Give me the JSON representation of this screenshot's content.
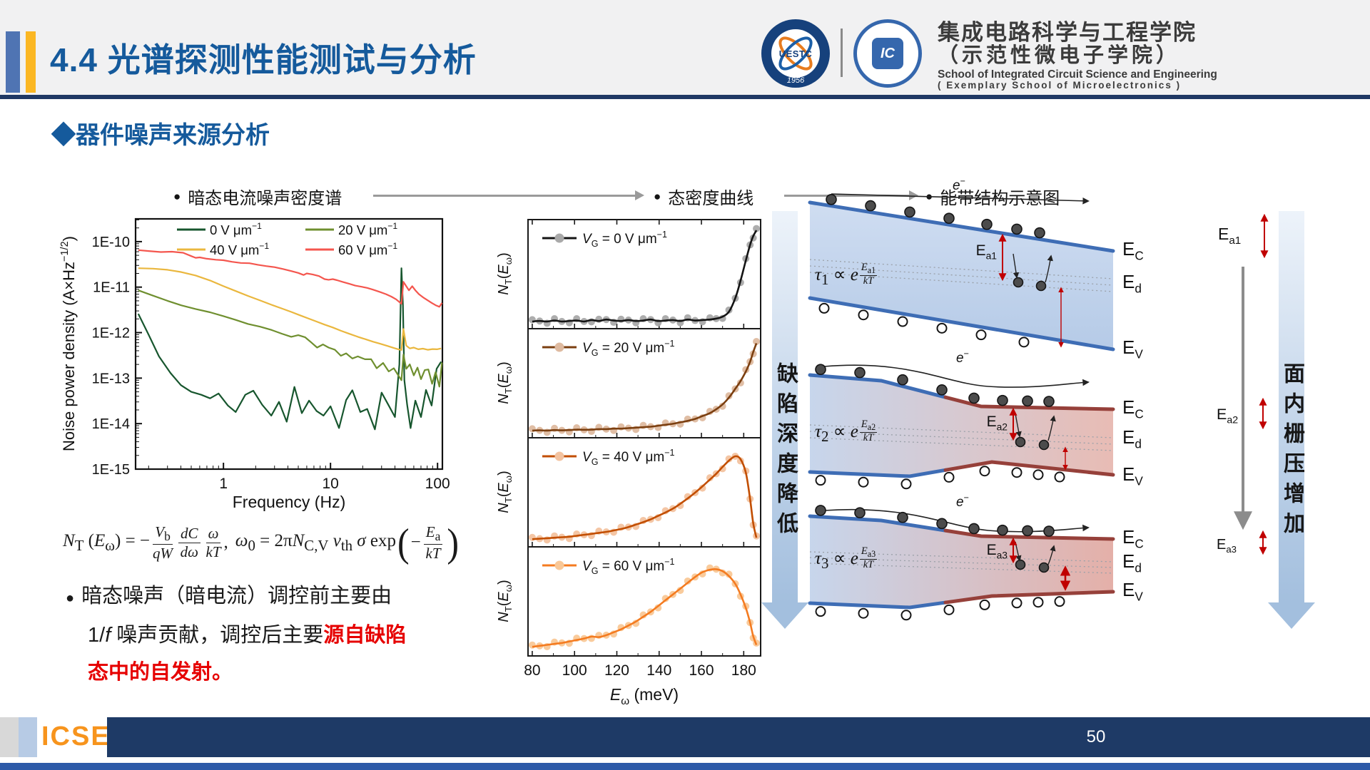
{
  "header": {
    "title": "4.4 光谱探测性能测试与分析",
    "uestc_label": "UESTC",
    "uestc_year": "1956",
    "icse_label": "IC",
    "school_cn1": "集成电路科学与工程学院",
    "school_cn2": "（示范性微电子学院）",
    "school_en1": "School of Integrated Circuit Science and Engineering",
    "school_en2": "( Exemplary School of Microelectronics )"
  },
  "section": {
    "marker": "◆",
    "heading": "器件噪声来源分析"
  },
  "flow": {
    "item1": "暗态电流噪声密度谱",
    "item2": "态密度曲线",
    "item3": "能带结构示意图",
    "dot": "●"
  },
  "formula": {
    "lhs": "*N*_{T} (*E*_{ω}) = −",
    "f1n": "*V*_{b}",
    "f1d": "*qW*",
    "f2n": "*dC*",
    "f2d": "*dω*",
    "f3n": "*ω*",
    "f3d": "*kT*",
    "comma": ",",
    "mid": "*ω*_{0} = 2π*N*_{C,V} *v*_{th} *σ* exp",
    "open": "(",
    "minus": "−",
    "f4n": "*E*_{a}",
    "f4d": "*kT*",
    "close": ")"
  },
  "conclusion": {
    "dot": "●",
    "l1": "暗态噪声（暗电流）调控前主要由",
    "l2a": "1/*f* 噪声贡献，调控后主要",
    "l2b": "源自缺陷",
    "l3": "态中的自发射。"
  },
  "chart_data": [
    {
      "id": "noise",
      "type": "line",
      "title": "暗态电流噪声密度谱",
      "xlabel": "Frequency (Hz)",
      "ylabel": "Noise power density (A×Hz^{−1/2})",
      "xscale": "log",
      "yscale": "log",
      "xlim": [
        0.151,
        111
      ],
      "ylim": [
        1e-15,
        3.16e-10
      ],
      "xticks": [
        1,
        10,
        100
      ],
      "yticks": [
        "1E-10",
        "1E-11",
        "1E-12",
        "1E-13",
        "1E-14",
        "1E-15"
      ],
      "legend_position": "top-inside",
      "grid": false,
      "series": [
        {
          "name": "0 V μm^{−1}",
          "color": "#17562e",
          "x": [
            0.16,
            0.2,
            0.25,
            0.32,
            0.4,
            0.5,
            0.62,
            0.75,
            0.9,
            1.1,
            1.3,
            1.6,
            1.9,
            2.3,
            2.8,
            3.3,
            3.9,
            4.6,
            5.4,
            6.3,
            7.4,
            8.6,
            10,
            12,
            14,
            16,
            19,
            22,
            26,
            30,
            35,
            40,
            44,
            46,
            47.5,
            49,
            52,
            56,
            62,
            70,
            78,
            88,
            98,
            108
          ],
          "y": [
            2.6e-12,
            9e-13,
            3e-13,
            1.3e-13,
            7e-14,
            5e-14,
            4.3e-14,
            3.6e-14,
            4.6e-14,
            2.5e-14,
            1.8e-14,
            4.3e-14,
            5.3e-14,
            2.6e-14,
            1.5e-14,
            3e-14,
            1.1e-14,
            6.4e-14,
            1.7e-14,
            3.2e-14,
            1.9e-14,
            1.5e-14,
            2.4e-14,
            8e-15,
            3.3e-14,
            5.4e-14,
            1.8e-14,
            2.1e-14,
            7.5e-15,
            4.8e-14,
            2.5e-14,
            1.4e-14,
            2e-13,
            2.6e-11,
            4e-12,
            9e-14,
            2.6e-14,
            8e-15,
            3.2e-14,
            1.4e-14,
            5.5e-14,
            2.5e-14,
            1.6e-13,
            2.3e-13
          ]
        },
        {
          "name": "20 V μm^{−1}",
          "color": "#6f8f2f",
          "x": [
            0.16,
            0.22,
            0.3,
            0.4,
            0.55,
            0.75,
            1,
            1.3,
            1.7,
            2.2,
            2.8,
            3.5,
            4.3,
            5,
            5.8,
            6.6,
            7.5,
            8.5,
            9.6,
            11,
            12.5,
            14,
            16,
            18,
            21,
            24,
            27,
            31,
            35,
            39,
            43,
            46,
            48,
            51,
            55,
            60,
            65,
            70,
            76,
            82,
            89,
            96,
            104,
            110
          ],
          "y": [
            8.5e-12,
            6.5e-12,
            5e-12,
            4e-12,
            3.3e-12,
            2.8e-12,
            2.3e-12,
            1.9e-12,
            1.55e-12,
            1.35e-12,
            1.15e-12,
            9.5e-13,
            8.1e-13,
            8.8e-13,
            7.9e-13,
            6.1e-13,
            4.7e-13,
            5.5e-13,
            4.7e-13,
            4.2e-13,
            3.1e-13,
            3.5e-13,
            2.7e-13,
            3e-13,
            2.6e-13,
            2.6e-13,
            1.65e-13,
            2.15e-13,
            1.4e-13,
            1.65e-13,
            1.15e-13,
            9e-14,
            3.3e-13,
            1.6e-13,
            2e-13,
            1.15e-13,
            1.7e-13,
            9.5e-14,
            1.5e-13,
            1.55e-13,
            7.5e-14,
            1.35e-13,
            6.5e-14,
            2.2e-13
          ]
        },
        {
          "name": "40 V μm^{−1}",
          "color": "#eab73e",
          "x": [
            0.16,
            0.22,
            0.3,
            0.4,
            0.55,
            0.75,
            1,
            1.3,
            1.7,
            2.2,
            2.8,
            3.5,
            4.3,
            5.2,
            6.2,
            7.4,
            8.8,
            10.5,
            12.5,
            15,
            18,
            21,
            25,
            29,
            34,
            39,
            43,
            46,
            48,
            51,
            55,
            60,
            66,
            73,
            81,
            90,
            99,
            108
          ],
          "y": [
            2.6e-11,
            2.55e-11,
            2.4e-11,
            2.15e-11,
            1.8e-11,
            1.4e-11,
            1.05e-11,
            8.2e-12,
            6.4e-12,
            5.1e-12,
            4.1e-12,
            3.4e-12,
            2.85e-12,
            2.4e-12,
            2.05e-12,
            1.75e-12,
            1.5e-12,
            1.3e-12,
            1.1e-12,
            9.4e-13,
            8.1e-13,
            7.2e-13,
            6.3e-13,
            5.7e-13,
            5.1e-13,
            4.6e-13,
            4.3e-13,
            4.15e-13,
            1.2e-12,
            5.2e-13,
            4.5e-13,
            4.7e-13,
            4.3e-13,
            4.45e-13,
            4.2e-13,
            4.35e-13,
            4.3e-13,
            4.5e-13
          ]
        },
        {
          "name": "60 V μm^{−1}",
          "color": "#f4564e",
          "x": [
            0.16,
            0.2,
            0.26,
            0.33,
            0.42,
            0.5,
            0.55,
            0.6,
            0.7,
            0.85,
            1,
            1.2,
            1.45,
            1.75,
            2.1,
            2.5,
            3,
            3.6,
            4.3,
            5,
            5.6,
            6,
            6.8,
            7.8,
            8.8,
            9.6,
            10.5,
            11.5,
            13,
            15,
            17,
            19.5,
            22,
            25,
            29,
            33,
            37,
            41,
            44,
            46,
            48,
            51,
            54,
            58,
            62,
            67,
            73,
            80,
            88,
            96,
            104,
            110
          ],
          "y": [
            6.5e-11,
            6.2e-11,
            5.9e-11,
            6e-11,
            5.7e-11,
            4.8e-11,
            4.4e-11,
            4.5e-11,
            4.2e-11,
            4e-11,
            3.9e-11,
            3.6e-11,
            3.4e-11,
            3.35e-11,
            3.1e-11,
            2.9e-11,
            2.75e-11,
            2.5e-11,
            2.25e-11,
            2.05e-11,
            1.85e-11,
            2e-11,
            1.9e-11,
            1.75e-11,
            1.5e-11,
            1.45e-11,
            1.5e-11,
            1.42e-11,
            1.3e-11,
            1.18e-11,
            1.08e-11,
            1.02e-11,
            9.6e-12,
            8.8e-12,
            7.8e-12,
            7e-12,
            6.2e-12,
            5.4e-12,
            4.7e-12,
            4.3e-12,
            1.3e-11,
            1.05e-11,
            8.5e-12,
            1.05e-11,
            8.5e-12,
            7e-12,
            6e-12,
            5.2e-12,
            4.5e-12,
            4e-12,
            3.7e-12,
            4.5e-12
          ]
        }
      ]
    },
    {
      "id": "dos",
      "type": "line",
      "title": "态密度曲线",
      "xlabel": "*E*_{ω} (meV)",
      "ylabel": "*N*_{T}(*E*_{ω})",
      "xlim": [
        78,
        188
      ],
      "xticks": [
        80,
        100,
        120,
        140,
        160,
        180
      ],
      "grid": false,
      "x_shared": [
        80,
        83.5,
        87,
        90.5,
        94,
        97.5,
        101,
        104.5,
        108,
        111.5,
        115,
        118.5,
        122,
        125.5,
        129,
        132.5,
        136,
        139.5,
        143,
        146.5,
        150,
        153.5,
        157,
        160.5,
        164,
        167,
        170,
        173,
        176,
        178.5,
        181,
        183,
        184.5,
        186
      ],
      "panels": [
        {
          "legend": "*V*_{G} = 0 V μm^{−1}",
          "line_color": "#141414",
          "marker_color": "#a9a9a9",
          "y": [
            0.03,
            0.035,
            0.03,
            0.04,
            0.03,
            0.035,
            0.04,
            0.03,
            0.045,
            0.035,
            0.05,
            0.04,
            0.035,
            0.045,
            0.035,
            0.04,
            0.05,
            0.035,
            0.04,
            0.045,
            0.035,
            0.05,
            0.04,
            0.045,
            0.05,
            0.06,
            0.08,
            0.13,
            0.27,
            0.45,
            0.66,
            0.82,
            0.91,
            0.97
          ]
        },
        {
          "legend": "*V*_{G} = 20 V μm^{−1}",
          "line_color": "#7b3f10",
          "marker_color": "#debaa0",
          "y": [
            0.03,
            0.032,
            0.03,
            0.035,
            0.032,
            0.035,
            0.04,
            0.038,
            0.04,
            0.045,
            0.045,
            0.05,
            0.05,
            0.055,
            0.06,
            0.065,
            0.07,
            0.08,
            0.09,
            0.1,
            0.115,
            0.13,
            0.15,
            0.18,
            0.21,
            0.25,
            0.3,
            0.37,
            0.46,
            0.54,
            0.64,
            0.74,
            0.84,
            0.93
          ]
        },
        {
          "legend": "*V*_{G} = 40 V μm^{−1}",
          "line_color": "#c24e00",
          "marker_color": "#f3c3a0",
          "y": [
            0.035,
            0.04,
            0.045,
            0.05,
            0.055,
            0.06,
            0.07,
            0.08,
            0.09,
            0.1,
            0.11,
            0.125,
            0.14,
            0.16,
            0.185,
            0.21,
            0.24,
            0.275,
            0.31,
            0.35,
            0.4,
            0.455,
            0.515,
            0.58,
            0.65,
            0.71,
            0.78,
            0.845,
            0.89,
            0.86,
            0.72,
            0.45,
            0.2,
            0.05
          ]
        },
        {
          "legend": "*V*_{G} = 60 V μm^{−1}",
          "line_color": "#f47b20",
          "marker_color": "#f9c897",
          "y": [
            0.05,
            0.06,
            0.07,
            0.08,
            0.09,
            0.105,
            0.12,
            0.135,
            0.155,
            0.15,
            0.17,
            0.2,
            0.23,
            0.27,
            0.31,
            0.36,
            0.41,
            0.47,
            0.53,
            0.59,
            0.65,
            0.71,
            0.77,
            0.82,
            0.845,
            0.85,
            0.83,
            0.78,
            0.7,
            0.59,
            0.45,
            0.3,
            0.16,
            0.07
          ]
        }
      ]
    }
  ],
  "band_section": {
    "title": "能带结构示意图",
    "left_band": "缺陷深度降低",
    "right_band": "面内栅压增加",
    "diagrams": [
      {
        "tau": "*τ*_{1} ∝ *e*",
        "num": "*E*_{a1}",
        "den": "*kT*",
        "ea": "E_{a1}",
        "ec": "E_{C}",
        "ed": "E_{d}",
        "ev": "E_{V}",
        "e": "*e*^{−}"
      },
      {
        "tau": "*τ*_{2} ∝ *e*",
        "num": "*E*_{a2}",
        "den": "*kT*",
        "ea": "E_{a2}",
        "ec": "E_{C}",
        "ed": "E_{d}",
        "ev": "E_{V}",
        "e": "*e*^{−}"
      },
      {
        "tau": "*τ*_{3} ∝ *e*",
        "num": "*E*_{a3}",
        "den": "*kT*",
        "ea": "E_{a3}",
        "ec": "E_{C}",
        "ed": "E_{d}",
        "ev": "E_{V}",
        "e": "*e*^{−}"
      }
    ],
    "side_labels": [
      "E_{a1}",
      "E_{a2}",
      "E_{a3}"
    ]
  },
  "footer": {
    "logo": "ICSE",
    "page": "50"
  }
}
